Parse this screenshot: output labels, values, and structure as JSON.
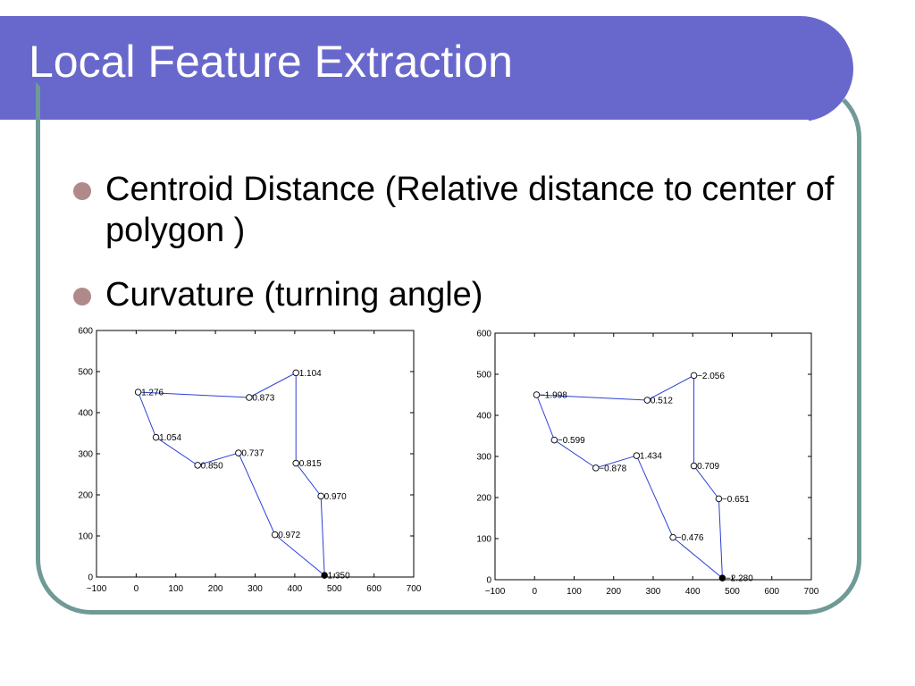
{
  "slide": {
    "title": "Local Feature Extraction",
    "bullets": [
      "Centroid Distance (Relative distance to center of polygon )",
      "Curvature (turning angle)"
    ]
  },
  "colors": {
    "title_bar": "#6868cc",
    "frame": "#6f9a96",
    "bullet": "#b08a8a",
    "plot_line": "#2b3fd6",
    "axes": "#000000"
  },
  "chart_data": [
    {
      "type": "line",
      "xlim": [
        -100,
        700
      ],
      "ylim": [
        0,
        600
      ],
      "x_ticks": [
        -100,
        0,
        100,
        200,
        300,
        400,
        500,
        600,
        700
      ],
      "y_ticks": [
        0,
        100,
        200,
        300,
        400,
        500,
        600
      ],
      "points": [
        {
          "x": 5,
          "y": 450,
          "label": "1.276"
        },
        {
          "x": 285,
          "y": 437,
          "label": "0.873"
        },
        {
          "x": 403,
          "y": 497,
          "label": "1.104"
        },
        {
          "x": 403,
          "y": 277,
          "label": "0.815"
        },
        {
          "x": 466,
          "y": 197,
          "label": "0.970"
        },
        {
          "x": 475,
          "y": 4,
          "label": "1.350",
          "filled": true
        },
        {
          "x": 350,
          "y": 103,
          "label": "0.972"
        },
        {
          "x": 258,
          "y": 302,
          "label": "0.737"
        },
        {
          "x": 155,
          "y": 272,
          "label": "0.850"
        },
        {
          "x": 50,
          "y": 340,
          "label": "1.054"
        },
        {
          "x": 5,
          "y": 450,
          "label": ""
        }
      ]
    },
    {
      "type": "line",
      "xlim": [
        -100,
        700
      ],
      "ylim": [
        0,
        600
      ],
      "x_ticks": [
        -100,
        0,
        100,
        200,
        300,
        400,
        500,
        600,
        700
      ],
      "y_ticks": [
        0,
        100,
        200,
        300,
        400,
        500,
        600
      ],
      "points": [
        {
          "x": 5,
          "y": 450,
          "label": "−1.998"
        },
        {
          "x": 285,
          "y": 437,
          "label": "0.512"
        },
        {
          "x": 403,
          "y": 497,
          "label": "−2.056"
        },
        {
          "x": 403,
          "y": 277,
          "label": "0.709"
        },
        {
          "x": 466,
          "y": 197,
          "label": "−0.651"
        },
        {
          "x": 475,
          "y": 4,
          "label": "−2.280",
          "filled": true
        },
        {
          "x": 350,
          "y": 103,
          "label": "−0.476"
        },
        {
          "x": 258,
          "y": 302,
          "label": "1.434"
        },
        {
          "x": 155,
          "y": 272,
          "label": "−0.878"
        },
        {
          "x": 50,
          "y": 340,
          "label": "−0.599"
        },
        {
          "x": 5,
          "y": 450,
          "label": ""
        }
      ]
    }
  ]
}
